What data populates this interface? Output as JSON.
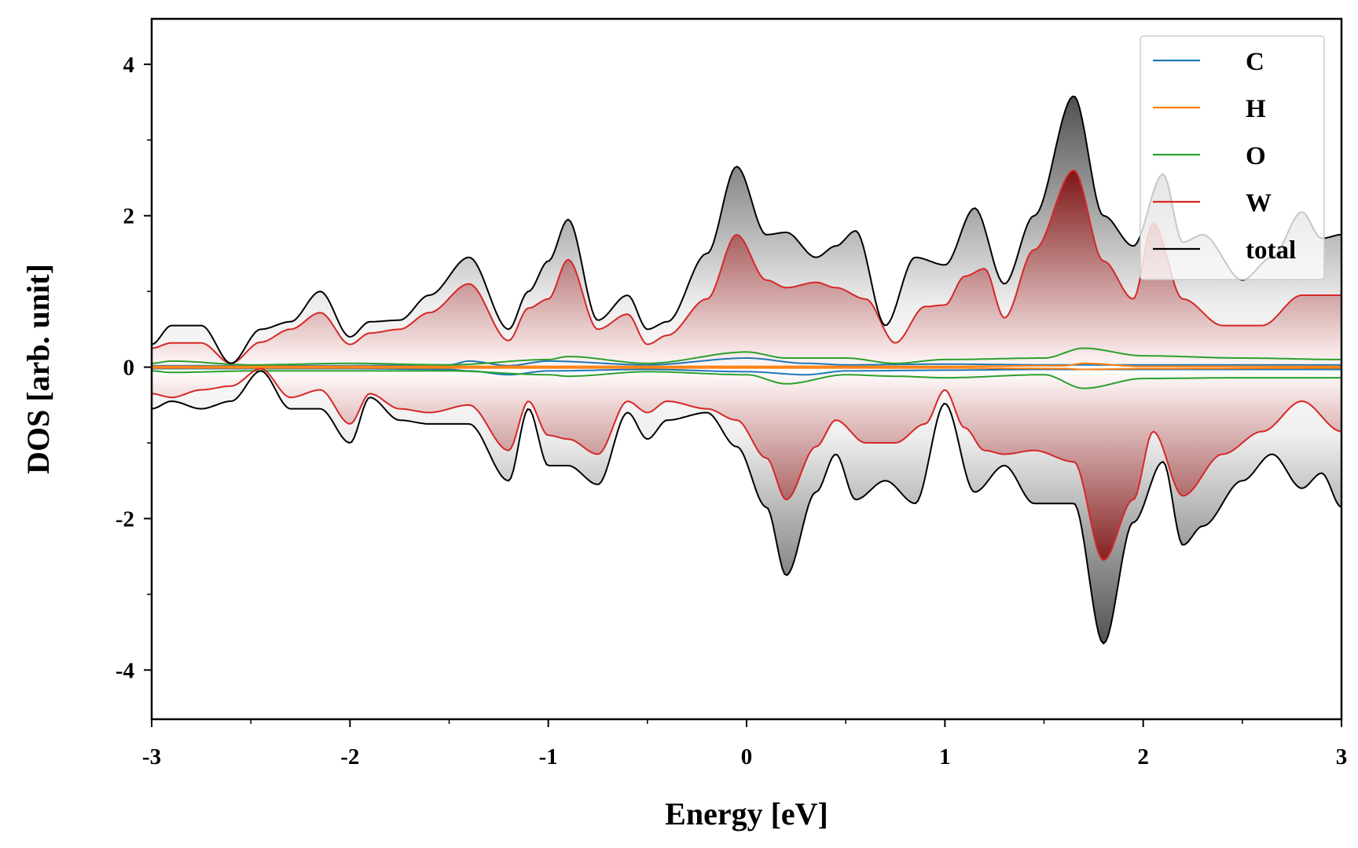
{
  "chart_data": {
    "type": "line",
    "title": "",
    "xlabel": "Energy [eV]",
    "ylabel": "DOS [arb. unit]",
    "xlim": [
      -3,
      3
    ],
    "ylim": [
      -4.65,
      4.6
    ],
    "xticks": [
      -3,
      -2,
      -1,
      0,
      1,
      2,
      3
    ],
    "xtick_labels": [
      "-3",
      "-2",
      "-1",
      "0",
      "1",
      "2",
      "3"
    ],
    "yticks": [
      -4,
      -2,
      0,
      2,
      4
    ],
    "ytick_labels": [
      "-4",
      "-2",
      "0",
      "2",
      "4"
    ],
    "grid": false,
    "legend_position": "top-right",
    "spin_polarized": true,
    "fill": {
      "total_color": "#555555",
      "W_color": "#8b1a1a"
    },
    "series": [
      {
        "name": "C",
        "color": "#1f77b4",
        "x": [
          -3,
          -2.5,
          -2,
          -1.5,
          -1.4,
          -1.2,
          -1.0,
          -0.5,
          0,
          0.3,
          0.5,
          1.0,
          1.5,
          2.0,
          2.5,
          3
        ],
        "up": [
          0.02,
          0.02,
          0.02,
          0.03,
          0.08,
          0.02,
          0.08,
          0.03,
          0.12,
          0.05,
          0.03,
          0.04,
          0.03,
          0.03,
          0.03,
          0.03
        ],
        "down": [
          -0.02,
          -0.02,
          -0.02,
          -0.03,
          -0.05,
          -0.1,
          -0.05,
          -0.03,
          -0.06,
          -0.1,
          -0.05,
          -0.04,
          -0.03,
          -0.03,
          -0.03,
          -0.03
        ]
      },
      {
        "name": "H",
        "color": "#ff7f0e",
        "x": [
          -3,
          -2,
          -1,
          0,
          1,
          1.6,
          1.7,
          2,
          3
        ],
        "up": [
          0.01,
          0.01,
          0.01,
          0.01,
          0.01,
          0.02,
          0.05,
          0.01,
          0.01
        ],
        "down": [
          -0.01,
          -0.01,
          -0.01,
          -0.01,
          -0.01,
          -0.02,
          -0.03,
          -0.02,
          -0.01
        ]
      },
      {
        "name": "O",
        "color": "#2ca02c",
        "x": [
          -3,
          -2.9,
          -2.5,
          -2,
          -1.5,
          -1,
          -0.9,
          -0.5,
          0,
          0.2,
          0.5,
          0.75,
          1,
          1.5,
          1.7,
          2,
          2.5,
          3
        ],
        "up": [
          0.05,
          0.08,
          0.03,
          0.05,
          0.03,
          0.1,
          0.14,
          0.05,
          0.2,
          0.12,
          0.12,
          0.05,
          0.1,
          0.12,
          0.25,
          0.15,
          0.12,
          0.1
        ],
        "down": [
          -0.05,
          -0.07,
          -0.05,
          -0.05,
          -0.05,
          -0.1,
          -0.12,
          -0.06,
          -0.1,
          -0.22,
          -0.1,
          -0.12,
          -0.14,
          -0.1,
          -0.28,
          -0.15,
          -0.14,
          -0.14
        ]
      },
      {
        "name": "W",
        "color": "#d62728",
        "x": [
          -3,
          -2.9,
          -2.75,
          -2.6,
          -2.45,
          -2.3,
          -2.15,
          -2.0,
          -1.9,
          -1.75,
          -1.6,
          -1.4,
          -1.2,
          -1.1,
          -1.0,
          -0.9,
          -0.75,
          -0.6,
          -0.5,
          -0.4,
          -0.2,
          -0.05,
          0.1,
          0.2,
          0.35,
          0.45,
          0.6,
          0.75,
          0.9,
          1.0,
          1.1,
          1.2,
          1.3,
          1.45,
          1.65,
          1.8,
          1.95,
          2.05,
          2.2,
          2.4,
          2.6,
          2.8,
          3.0
        ],
        "up": [
          0.25,
          0.32,
          0.32,
          0.05,
          0.33,
          0.5,
          0.72,
          0.3,
          0.45,
          0.5,
          0.72,
          1.1,
          0.35,
          0.78,
          0.9,
          1.42,
          0.5,
          0.7,
          0.3,
          0.42,
          0.9,
          1.75,
          1.15,
          1.05,
          1.12,
          1.05,
          0.9,
          0.32,
          0.8,
          0.82,
          1.2,
          1.3,
          0.65,
          1.55,
          2.6,
          1.4,
          0.9,
          1.9,
          0.9,
          0.55,
          0.55,
          0.95,
          0.95
        ],
        "down": [
          -0.35,
          -0.4,
          -0.3,
          -0.25,
          -0.02,
          -0.4,
          -0.3,
          -0.75,
          -0.35,
          -0.55,
          -0.6,
          -0.5,
          -1.1,
          -0.45,
          -0.9,
          -0.95,
          -1.15,
          -0.45,
          -0.6,
          -0.45,
          -0.55,
          -0.7,
          -1.2,
          -1.75,
          -1.05,
          -0.7,
          -1.0,
          -1.0,
          -0.75,
          -0.3,
          -0.8,
          -1.1,
          -1.15,
          -1.1,
          -1.25,
          -2.55,
          -1.75,
          -0.85,
          -1.7,
          -1.15,
          -0.85,
          -0.45,
          -0.85
        ]
      },
      {
        "name": "total",
        "color": "#000000",
        "x": [
          -3,
          -2.9,
          -2.75,
          -2.6,
          -2.45,
          -2.3,
          -2.15,
          -2.0,
          -1.9,
          -1.75,
          -1.6,
          -1.4,
          -1.2,
          -1.1,
          -1.0,
          -0.9,
          -0.75,
          -0.6,
          -0.5,
          -0.4,
          -0.2,
          -0.05,
          0.1,
          0.2,
          0.35,
          0.45,
          0.55,
          0.7,
          0.85,
          1.0,
          1.15,
          1.3,
          1.45,
          1.65,
          1.8,
          1.95,
          2.1,
          2.2,
          2.3,
          2.5,
          2.65,
          2.8,
          2.9,
          3.0
        ],
        "up": [
          0.3,
          0.55,
          0.55,
          0.05,
          0.5,
          0.6,
          1.0,
          0.4,
          0.6,
          0.62,
          0.95,
          1.45,
          0.5,
          1.0,
          1.4,
          1.95,
          0.62,
          0.95,
          0.5,
          0.6,
          1.5,
          2.65,
          1.75,
          1.78,
          1.45,
          1.6,
          1.8,
          0.55,
          1.45,
          1.35,
          2.1,
          1.1,
          2.0,
          3.58,
          2.0,
          1.6,
          2.55,
          1.65,
          1.75,
          1.15,
          1.45,
          2.05,
          1.7,
          1.75
        ],
        "down": [
          -0.55,
          -0.45,
          -0.55,
          -0.45,
          -0.05,
          -0.55,
          -0.55,
          -1.0,
          -0.4,
          -0.7,
          -0.75,
          -0.75,
          -1.5,
          -0.55,
          -1.3,
          -1.3,
          -1.55,
          -0.6,
          -0.95,
          -0.7,
          -0.6,
          -1.05,
          -1.85,
          -2.75,
          -1.65,
          -1.15,
          -1.75,
          -1.5,
          -1.8,
          -0.48,
          -1.65,
          -1.3,
          -1.8,
          -1.8,
          -3.65,
          -2.05,
          -1.25,
          -2.35,
          -2.1,
          -1.5,
          -1.15,
          -1.6,
          -1.4,
          -1.85
        ]
      }
    ]
  }
}
